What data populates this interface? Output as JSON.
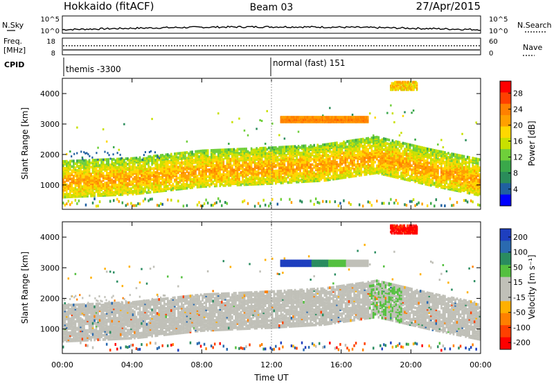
{
  "header": {
    "title_left": "Hokkaido (fitACF)",
    "title_center": "Beam 03",
    "title_right": "27/Apr/2015"
  },
  "top_panels": {
    "nsky_label": "N.Sky",
    "nsky_ticks": [
      "10^5",
      "10^0"
    ],
    "nsearch_label": "N.Search",
    "nsearch_ticks": [
      "10^5",
      "10^0"
    ],
    "freq_label_1": "Freq.",
    "freq_label_2": "[MHz]",
    "freq_ticks": [
      "18",
      "8"
    ],
    "nave_label": "Nave",
    "nave_ticks": [
      "60",
      "0"
    ],
    "cpid_label": "CPID",
    "cpid_1": "themis -3300",
    "cpid_2": "normal (fast) 151"
  },
  "x_axis": {
    "label": "Time UT",
    "ticks": [
      "00:00",
      "04:00",
      "08:00",
      "12:00",
      "16:00",
      "20:00",
      "00:00"
    ]
  },
  "power_colorbar": {
    "label": "Power [dB]",
    "ticks": [
      "28",
      "24",
      "20",
      "16",
      "12",
      "8",
      "4"
    ],
    "colors": [
      "#ff0000",
      "#ff4000",
      "#ff8000",
      "#ffa000",
      "#ffd800",
      "#c8e000",
      "#6fcf3a",
      "#3aa84a",
      "#2a8c5a",
      "#2060a0",
      "#0000ff"
    ]
  },
  "velocity_colorbar": {
    "label": "Velocity [m s⁻¹]",
    "ticks": [
      "200",
      "100",
      "50",
      "15",
      "-15",
      "-50",
      "-100",
      "-200"
    ],
    "colors": [
      "#1e3fbf",
      "#2a6ab0",
      "#2a8c60",
      "#55c040",
      "#c0c0b8",
      "#c0c0b8",
      "#ffb000",
      "#ff8000",
      "#ff4000",
      "#ff0000"
    ]
  },
  "chart_data": [
    {
      "type": "heatmap",
      "title": "Power",
      "xlabel": "Time UT",
      "ylabel": "Slant Range [km]",
      "xlim": [
        0,
        24
      ],
      "ylim": [
        200,
        4500
      ],
      "yticks": [
        1000,
        2000,
        3000,
        4000
      ],
      "colorbar_label": "Power [dB]",
      "colorbar_range": [
        0,
        32
      ],
      "features": [
        {
          "feature": "main echo band",
          "t": [
            0,
            4,
            8,
            12,
            15,
            18,
            21,
            24
          ],
          "range_km": [
            1100,
            1200,
            1450,
            1550,
            1650,
            1900,
            1500,
            1150
          ],
          "power_db": 26
        },
        {
          "feature": "high range echo",
          "t_range": [
            12.5,
            17.5
          ],
          "range_km": 3150,
          "power_db": 28
        },
        {
          "feature": "far echo",
          "t_range": [
            18.8,
            20.3
          ],
          "range_km": 4250,
          "power_db": 24
        }
      ]
    },
    {
      "type": "heatmap",
      "title": "Velocity",
      "xlabel": "Time UT",
      "ylabel": "Slant Range [km]",
      "xlim": [
        0,
        24
      ],
      "ylim": [
        200,
        4500
      ],
      "yticks": [
        1000,
        2000,
        3000,
        4000
      ],
      "colorbar_label": "Velocity [m s⁻¹]",
      "colorbar_range": [
        -250,
        250
      ],
      "features": [
        {
          "feature": "ground scatter band",
          "t": [
            0,
            4,
            8,
            12,
            15,
            18,
            21,
            24
          ],
          "range_km": [
            1100,
            1200,
            1450,
            1550,
            1650,
            1900,
            1500,
            1150
          ],
          "velocity_ms": 0
        },
        {
          "feature": "high range echo",
          "t_range": [
            12.5,
            17.5
          ],
          "range_km": 3150,
          "velocity_ms": 120
        },
        {
          "feature": "far echo",
          "t_range": [
            18.8,
            20.3
          ],
          "range_km": 4250,
          "velocity_ms": -200
        }
      ]
    }
  ]
}
